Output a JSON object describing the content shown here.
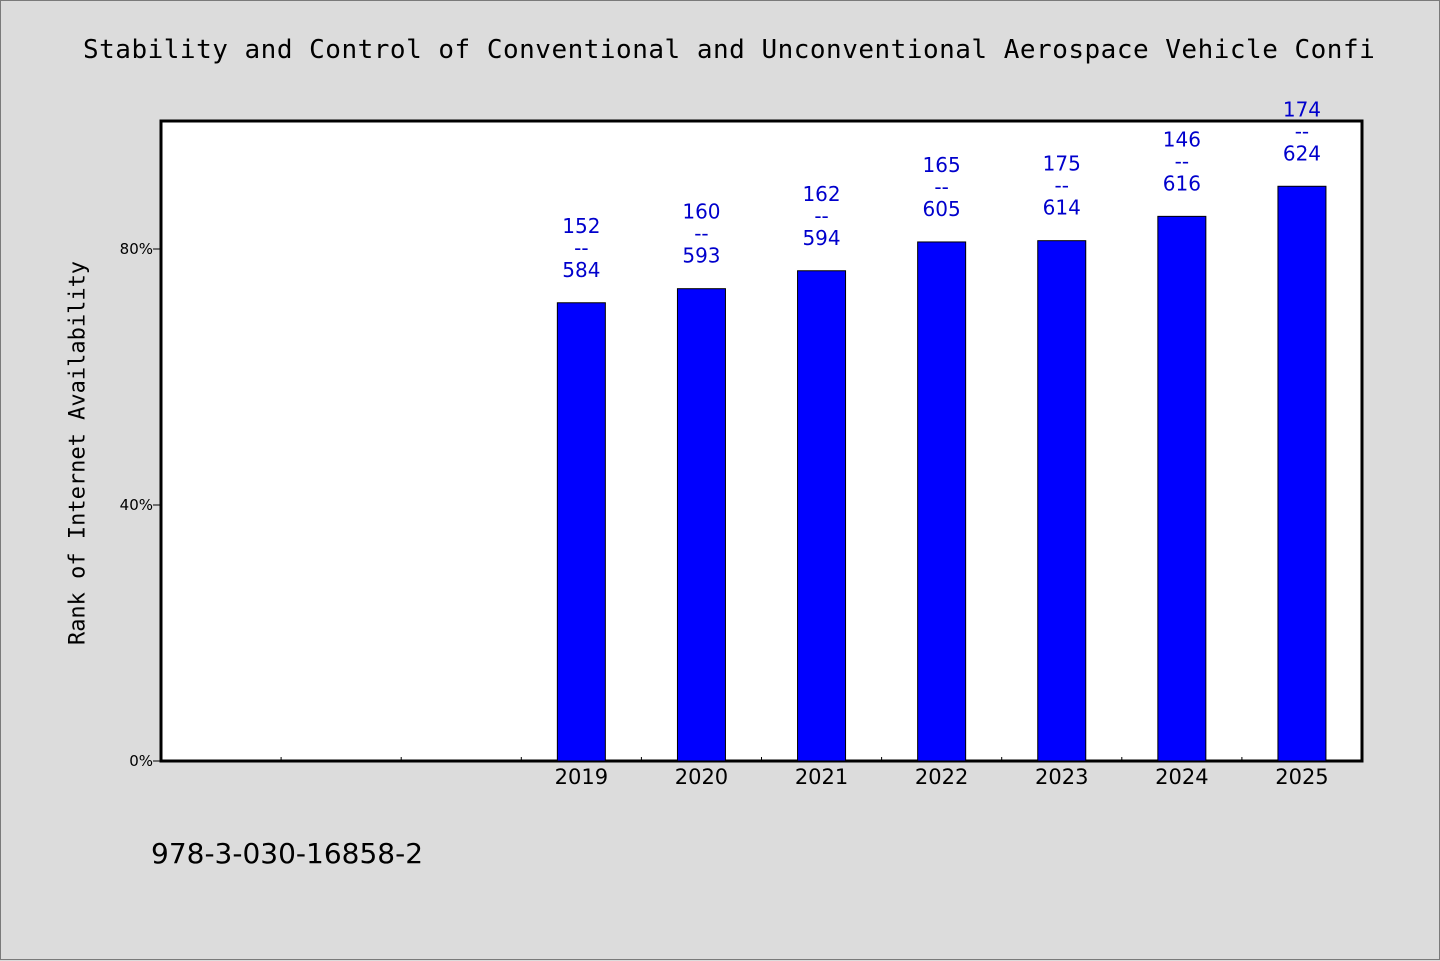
{
  "page": {
    "title": "Stability and Control of Conventional and Unconventional Aerospace Vehicle Confi",
    "footer": "978-3-030-16858-2"
  },
  "colors": {
    "background": "#dcdcdc",
    "plot_area": "#ffffff",
    "bar_fill": "#0000ff",
    "label_text": "#0000cc"
  },
  "chart_data": {
    "type": "bar",
    "title": "Stability and Control of Conventional and Unconventional Aerospace Vehicle Confi",
    "xlabel": "",
    "ylabel": "Rank of Internet Availability",
    "ylim": [
      0,
      100
    ],
    "yticks": [
      0,
      40,
      80
    ],
    "ytick_labels": [
      "0%",
      "40%",
      "80%"
    ],
    "slots": 10,
    "categories": [
      "2019",
      "2020",
      "2021",
      "2022",
      "2023",
      "2024",
      "2025"
    ],
    "values": [
      71.6,
      73.8,
      76.6,
      81.1,
      81.3,
      85.1,
      89.8
    ],
    "bar_labels": [
      [
        "152",
        "--",
        "584"
      ],
      [
        "160",
        "--",
        "593"
      ],
      [
        "162",
        "--",
        "594"
      ],
      [
        "165",
        "--",
        "605"
      ],
      [
        "175",
        "--",
        "614"
      ],
      [
        "146",
        "--",
        "616"
      ],
      [
        "174",
        "--",
        "624"
      ]
    ],
    "grid": false,
    "legend": "none"
  }
}
